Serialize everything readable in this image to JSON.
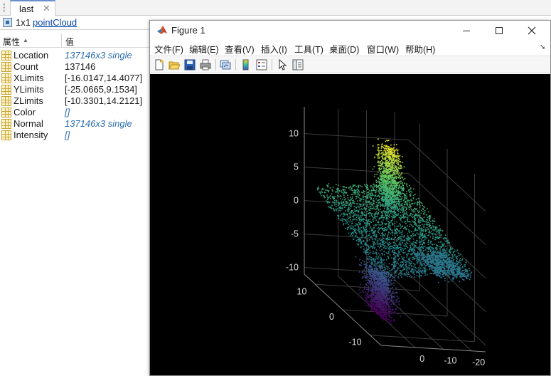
{
  "editor": {
    "tab": {
      "label": "last",
      "close": "✕"
    },
    "variable": {
      "size": "1x1",
      "class": "pointCloud"
    },
    "columns": {
      "property": "属性",
      "sort": "▲",
      "value": "值"
    },
    "properties": [
      {
        "name": "Location",
        "value": "137146x3 single",
        "link": true
      },
      {
        "name": "Count",
        "value": "137146",
        "link": false
      },
      {
        "name": "XLimits",
        "value": "[-16.0147,14.4077]",
        "link": false
      },
      {
        "name": "YLimits",
        "value": "[-25.0665,9.1534]",
        "link": false
      },
      {
        "name": "ZLimits",
        "value": "[-10.3301,14.2121]",
        "link": false
      },
      {
        "name": "Color",
        "value": "[]",
        "link": true
      },
      {
        "name": "Normal",
        "value": "137146x3 single",
        "link": true
      },
      {
        "name": "Intensity",
        "value": "[]",
        "link": true
      }
    ]
  },
  "figure": {
    "title": "Figure 1",
    "menu": [
      "文件(F)",
      "编辑(E)",
      "查看(V)",
      "插入(I)",
      "工具(T)",
      "桌面(D)",
      "窗口(W)",
      "帮助(H)"
    ],
    "toolbar_icons": [
      "new-figure-icon",
      "open-file-icon",
      "save-icon",
      "print-icon",
      "link-plot-icon",
      "colorbar-icon",
      "legend-icon",
      "edit-plot-arrow-icon",
      "property-inspector-icon"
    ],
    "colors": {
      "background": "#000000",
      "axis_line": "#8a8a8a",
      "grid": "#3c3c3c",
      "tick_text": "#d9d9d9",
      "colormap": [
        "#440154",
        "#3b528b",
        "#21908d",
        "#5dc963",
        "#fde725"
      ]
    }
  },
  "chart_data": {
    "type": "scatter3",
    "title": "",
    "xlabel": "",
    "ylabel": "",
    "zlabel": "",
    "x_ticks": [
      -20,
      -10,
      0
    ],
    "y_ticks": [
      -10,
      0,
      10
    ],
    "z_ticks": [
      -10,
      -5,
      0,
      5,
      10
    ],
    "xlim": [
      -16.0147,
      14.4077
    ],
    "ylim": [
      -25.0665,
      9.1534
    ],
    "zlim": [
      -10.3301,
      14.2121
    ],
    "point_count": 137146,
    "colormap": "parula-like (colored by Z)",
    "grid": true,
    "background": "#000000"
  }
}
